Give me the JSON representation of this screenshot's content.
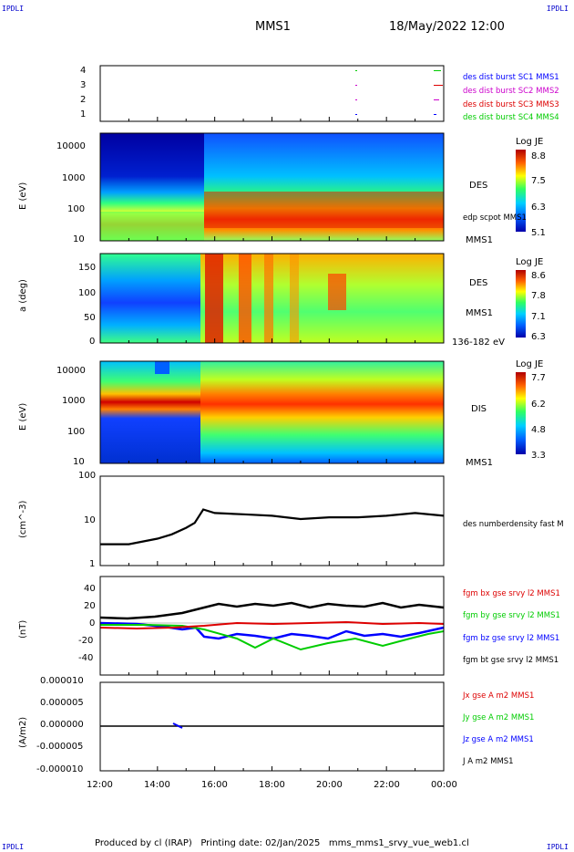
{
  "corner_tl": "IPDLI",
  "corner_tr": "IPDLI",
  "corner_bl": "IPDLI",
  "corner_br": "IPDLI",
  "header": {
    "spacecraft": "MMS1",
    "datetime": "18/May/2022 12:00"
  },
  "footer": "Produced by cl (IRAP)   Printing date: 02/Jan/2025   mms_mms1_srvy_vue_web1.cl",
  "x_ticks": [
    "12:00",
    "14:00",
    "16:00",
    "18:00",
    "20:00",
    "22:00",
    "00:00"
  ],
  "colors": {
    "blue": "#0000ff",
    "magenta": "#cc00cc",
    "red": "#dd0000",
    "green": "#00cc00",
    "black": "#000000"
  },
  "chart_data": [
    {
      "type": "scatter",
      "yticks": [
        "4",
        "3",
        "2",
        "1"
      ],
      "legend": [
        {
          "label": "des dist burst SC1 MMS1",
          "color": "#0000ff"
        },
        {
          "label": "des dist burst SC2 MMS2",
          "color": "#cc00cc"
        },
        {
          "label": "des dist burst SC3 MMS3",
          "color": "#dd0000"
        },
        {
          "label": "des dist burst SC4 MMS4",
          "color": "#00cc00"
        }
      ]
    },
    {
      "type": "heatmap",
      "ylabel": "E (eV)",
      "yticks": [
        "10000",
        "1000",
        "100",
        "10"
      ],
      "right_labels": [
        "DES",
        "edp scpot MMS1",
        "MMS1"
      ],
      "colorbar": {
        "title": "Log JE",
        "ticks": [
          "8.8",
          "7.5",
          "6.3",
          "5.1"
        ]
      }
    },
    {
      "type": "heatmap",
      "ylabel": "a (deg)",
      "yticks": [
        "150",
        "100",
        "50",
        "0"
      ],
      "right_labels": [
        "DES",
        "MMS1",
        "136-182 eV"
      ],
      "colorbar": {
        "title": "Log JE",
        "ticks": [
          "8.6",
          "7.8",
          "7.1",
          "6.3"
        ]
      }
    },
    {
      "type": "heatmap",
      "ylabel": "E (eV)",
      "yticks": [
        "10000",
        "1000",
        "100",
        "10"
      ],
      "right_labels": [
        "DIS",
        "MMS1"
      ],
      "colorbar": {
        "title": "Log JE",
        "ticks": [
          "7.7",
          "6.2",
          "4.8",
          "3.3"
        ]
      }
    },
    {
      "type": "line",
      "ylabel": "(cm^-3)",
      "yticks": [
        "100",
        "10",
        "1"
      ],
      "legend": [
        {
          "label": "des numberdensity fast M",
          "color": "#000000"
        }
      ],
      "x_hours": [
        12,
        13,
        14,
        14.5,
        15,
        15.3,
        15.6,
        16,
        17,
        18,
        19,
        20,
        21,
        22,
        23,
        24
      ],
      "values": [
        3,
        3,
        4,
        5,
        7,
        9,
        18,
        15,
        14,
        13,
        11,
        12,
        12,
        13,
        15,
        13
      ]
    },
    {
      "type": "line",
      "ylabel": "(nT)",
      "yticks": [
        "40",
        "20",
        "0",
        "-20",
        "-40"
      ],
      "legend": [
        {
          "label": "fgm bx gse srvy l2 MMS1",
          "color": "#dd0000"
        },
        {
          "label": "fgm by gse srvy l2 MMS1",
          "color": "#00cc00"
        },
        {
          "label": "fgm bz gse srvy l2 MMS1",
          "color": "#0000ff"
        },
        {
          "label": "fgm bt gse srvy l2 MMS1",
          "color": "#000000"
        }
      ]
    },
    {
      "type": "line",
      "ylabel": "(A/m2)",
      "yticks": [
        "0.000010",
        "0.000005",
        "0.000000",
        "-0.000005",
        "-0.000010"
      ],
      "legend": [
        {
          "label": "Jx gse A m2 MMS1",
          "color": "#dd0000"
        },
        {
          "label": "Jy gse A m2 MMS1",
          "color": "#00cc00"
        },
        {
          "label": "Jz gse A m2 MMS1",
          "color": "#0000ff"
        },
        {
          "label": "J A m2 MMS1",
          "color": "#000000"
        }
      ]
    }
  ]
}
